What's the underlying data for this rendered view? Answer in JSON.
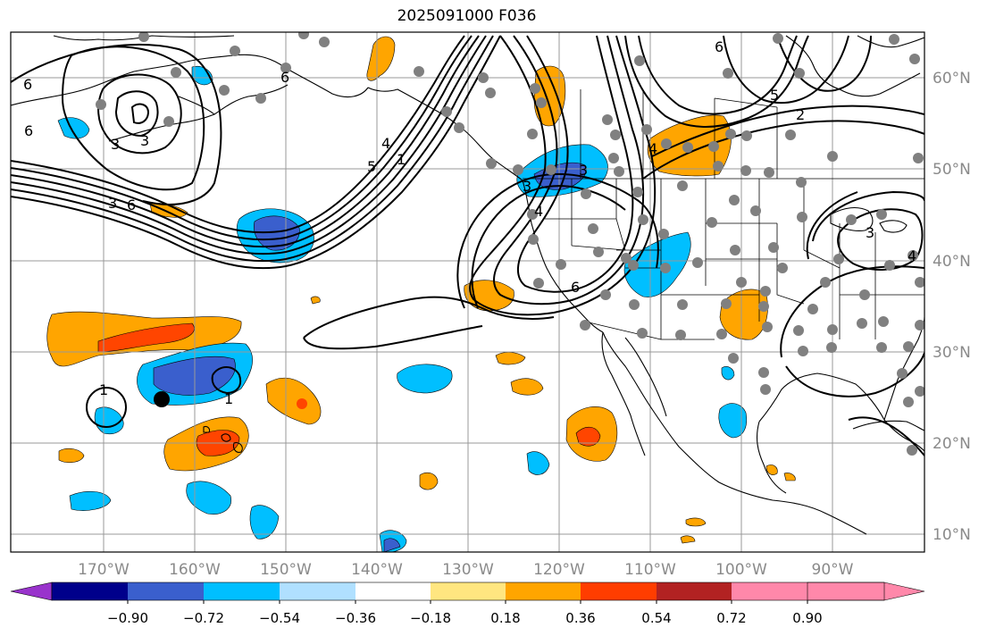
{
  "title": "2025091000 F036",
  "lon_labels": [
    "170°W",
    "160°W",
    "150°W",
    "140°W",
    "130°W",
    "120°W",
    "110°W",
    "100°W",
    "90°W"
  ],
  "lat_labels": [
    "60°N",
    "50°N",
    "40°N",
    "30°N",
    "20°N",
    "10°N"
  ],
  "colorbar": {
    "tick_labels": [
      "−0.90",
      "−0.72",
      "−0.54",
      "−0.36",
      "−0.18",
      "0.18",
      "0.36",
      "0.54",
      "0.72",
      "0.90"
    ],
    "colors": [
      "#9933cc",
      "#00008b",
      "#3a5fcd",
      "#00bfff",
      "#b0e0ff",
      "#ffffff",
      "#ffe680",
      "#ffa500",
      "#ff3d00",
      "#b22222",
      "#ff88aa"
    ]
  },
  "contour_labels": [
    "6",
    "6",
    "3",
    "3",
    "3",
    "6",
    "5",
    "4",
    "1",
    "1",
    "1",
    "3",
    "4",
    "6",
    "2",
    "3",
    "6",
    "4",
    "5",
    "6",
    "3",
    "4"
  ],
  "colors": {
    "orange": "#ffa500",
    "red_orange": "#ff4500",
    "sky_blue": "#00bfff",
    "royal_blue": "#3a5fcd",
    "station_gray": "#808080",
    "marker": "#000000"
  }
}
